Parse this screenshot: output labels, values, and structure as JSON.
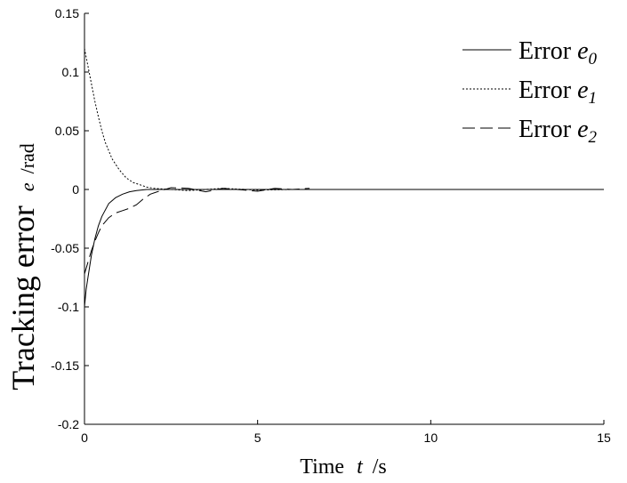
{
  "chart_data": {
    "type": "line",
    "xlabel": {
      "prefix": "Time",
      "symbol": "t",
      "suffix": "/s"
    },
    "ylabel": {
      "prefix": "Tracking error",
      "symbol": "e",
      "suffix": "/rad"
    },
    "xlim": [
      0,
      15
    ],
    "ylim": [
      -0.2,
      0.15
    ],
    "x_ticks": [
      "0",
      "5",
      "10",
      "15"
    ],
    "y_ticks": [
      "0.15",
      "0.1",
      "0.05",
      "0",
      "-0.05",
      "-0.1",
      "-0.15",
      "-0.2"
    ],
    "grid": false,
    "legend_position": "top-right",
    "series": [
      {
        "name": "Error e0",
        "legend_prefix": "Error ",
        "legend_symbol": "e",
        "legend_subscript": "0",
        "style": "solid",
        "x": [
          0,
          0.05,
          0.1,
          0.2,
          0.3,
          0.4,
          0.5,
          0.7,
          0.9,
          1.1,
          1.3,
          1.5,
          1.8,
          2.2,
          3,
          5,
          10,
          15
        ],
        "y": [
          -0.1,
          -0.085,
          -0.075,
          -0.056,
          -0.042,
          -0.031,
          -0.023,
          -0.012,
          -0.007,
          -0.004,
          -0.002,
          -0.001,
          0,
          0,
          0,
          0,
          0,
          0
        ]
      },
      {
        "name": "Error e1",
        "legend_prefix": "Error ",
        "legend_symbol": "e",
        "legend_subscript": "1",
        "style": "dotted",
        "x": [
          0,
          0.1,
          0.2,
          0.3,
          0.4,
          0.5,
          0.6,
          0.8,
          1.0,
          1.2,
          1.4,
          1.6,
          1.8,
          2.0,
          2.5,
          3.0,
          4.0,
          5.0,
          6.0,
          7.0,
          7.6
        ],
        "y": [
          0.12,
          0.105,
          0.09,
          0.075,
          0.062,
          0.05,
          0.04,
          0.026,
          0.017,
          0.01,
          0.006,
          0.004,
          0.002,
          0.001,
          0.0,
          -0.001,
          0.001,
          -0.0005,
          0.0,
          0.0,
          0.0
        ]
      },
      {
        "name": "Error e2",
        "legend_prefix": "Error ",
        "legend_symbol": "e",
        "legend_subscript": "2",
        "style": "dashed",
        "x": [
          0,
          0.1,
          0.2,
          0.3,
          0.4,
          0.5,
          0.7,
          0.9,
          1.1,
          1.3,
          1.5,
          1.7,
          1.9,
          2.1,
          2.5,
          3.0,
          3.5,
          4.0,
          5.0,
          5.5,
          6.0,
          6.5
        ],
        "y": [
          -0.072,
          -0.062,
          -0.052,
          -0.044,
          -0.037,
          -0.031,
          -0.024,
          -0.02,
          -0.018,
          -0.016,
          -0.013,
          -0.008,
          -0.004,
          -0.002,
          0.0015,
          0.001,
          -0.002,
          0.001,
          -0.0015,
          0.001,
          0.0,
          0.001
        ]
      }
    ]
  }
}
